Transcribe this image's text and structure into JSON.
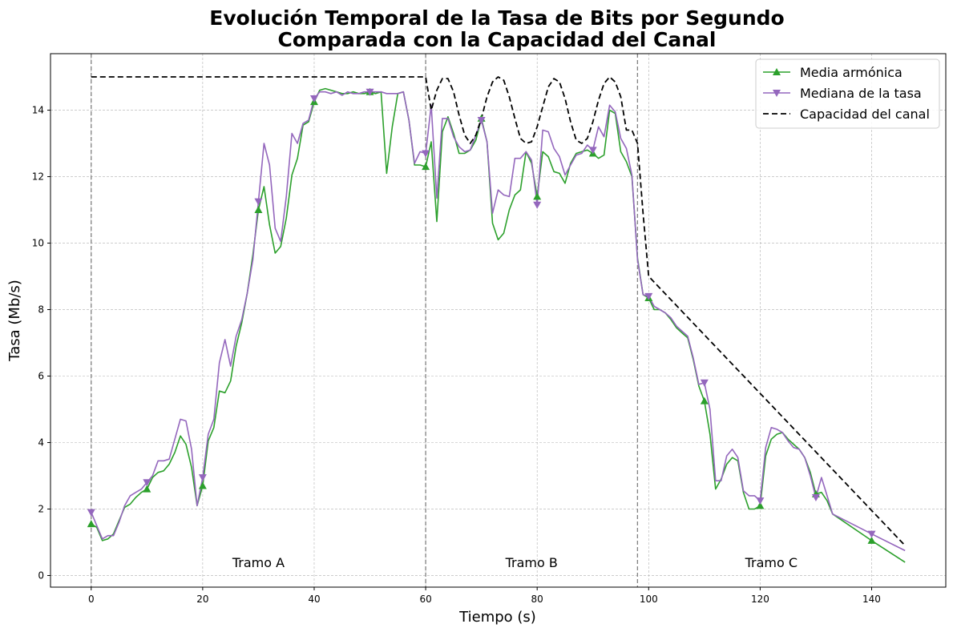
{
  "chart_data": {
    "type": "line",
    "title": [
      "Evolución Temporal de la Tasa de Bits por Segundo",
      "Comparada con la Capacidad del Canal"
    ],
    "xlabel": "Tiempo (s)",
    "ylabel": "Tasa (Mb/s)",
    "xlim": [
      -7.3,
      153.3
    ],
    "ylim": [
      -0.35,
      15.7
    ],
    "xticks": [
      0,
      20,
      40,
      60,
      80,
      100,
      120,
      140
    ],
    "yticks": [
      0,
      2,
      4,
      6,
      8,
      10,
      12,
      14
    ],
    "grid": true,
    "legend_position": "top-right",
    "vlines": [
      0,
      60,
      98
    ],
    "annotations": [
      {
        "text": "Tramo A",
        "x": 30,
        "y": 0.2
      },
      {
        "text": "Tramo B",
        "x": 79,
        "y": 0.2
      },
      {
        "text": "Tramo C",
        "x": 122,
        "y": 0.2
      }
    ],
    "series": [
      {
        "name": "Media armónica",
        "color": "#2ca02c",
        "marker": "triangle-up",
        "marker_x": [
          0,
          10,
          20,
          30,
          40,
          50,
          60,
          70,
          80,
          90,
          100,
          110,
          120,
          130,
          140
        ],
        "x": [
          0,
          1,
          2,
          3,
          4,
          5,
          6,
          7,
          8,
          9,
          10,
          11,
          12,
          13,
          14,
          15,
          16,
          17,
          18,
          19,
          20,
          21,
          22,
          23,
          24,
          25,
          26,
          27,
          28,
          29,
          30,
          31,
          32,
          33,
          34,
          35,
          36,
          37,
          38,
          39,
          40,
          41,
          42,
          43,
          44,
          45,
          46,
          47,
          48,
          49,
          50,
          51,
          52,
          53,
          54,
          55,
          56,
          57,
          58,
          59,
          60,
          61,
          62,
          63,
          64,
          65,
          66,
          67,
          68,
          69,
          70,
          71,
          72,
          73,
          74,
          75,
          76,
          77,
          78,
          79,
          80,
          81,
          82,
          83,
          84,
          85,
          86,
          87,
          88,
          89,
          90,
          91,
          92,
          93,
          94,
          95,
          96,
          97,
          98,
          99,
          100,
          101,
          102,
          103,
          104,
          105,
          106,
          107,
          108,
          109,
          110,
          111,
          112,
          113,
          114,
          115,
          116,
          117,
          118,
          119,
          120,
          121,
          122,
          123,
          124,
          125,
          126,
          127,
          128,
          129,
          130,
          131,
          132,
          133,
          140,
          146
        ],
        "values": [
          1.55,
          1.45,
          1.05,
          1.1,
          1.25,
          1.65,
          2.05,
          2.15,
          2.35,
          2.5,
          2.6,
          2.95,
          3.1,
          3.15,
          3.35,
          3.7,
          4.2,
          3.95,
          3.25,
          2.1,
          2.7,
          4.05,
          4.45,
          5.55,
          5.5,
          5.85,
          6.9,
          7.6,
          8.5,
          9.65,
          11.0,
          11.7,
          10.55,
          9.7,
          9.9,
          10.75,
          12.05,
          12.55,
          13.55,
          13.65,
          14.25,
          14.6,
          14.65,
          14.6,
          14.55,
          14.5,
          14.5,
          14.55,
          14.5,
          14.5,
          14.55,
          14.5,
          14.55,
          12.1,
          13.5,
          14.5,
          14.55,
          13.7,
          12.35,
          12.35,
          12.3,
          13.05,
          10.65,
          13.35,
          13.8,
          13.3,
          12.7,
          12.7,
          12.8,
          13.1,
          13.75,
          13.05,
          10.6,
          10.1,
          10.3,
          11.0,
          11.45,
          11.6,
          12.75,
          12.4,
          11.4,
          12.75,
          12.6,
          12.15,
          12.1,
          11.8,
          12.4,
          12.7,
          12.75,
          12.8,
          12.7,
          12.55,
          12.65,
          14.0,
          13.9,
          12.75,
          12.45,
          12.0,
          9.55,
          8.45,
          8.35,
          8.0,
          8.0,
          7.9,
          7.7,
          7.45,
          7.3,
          7.15,
          6.5,
          5.7,
          5.25,
          4.25,
          2.6,
          2.9,
          3.35,
          3.55,
          3.45,
          2.5,
          2.0,
          2.0,
          2.1,
          3.6,
          4.1,
          4.25,
          4.3,
          4.1,
          3.95,
          3.8,
          3.55,
          3.1,
          2.45,
          2.5,
          2.25,
          1.85,
          1.05,
          0.4
        ]
      },
      {
        "name": "Mediana de la tasa",
        "color": "#9467bd",
        "marker": "triangle-down",
        "marker_x": [
          0,
          10,
          20,
          30,
          40,
          50,
          60,
          70,
          80,
          90,
          100,
          110,
          120,
          130,
          140
        ],
        "x": [
          0,
          1,
          2,
          3,
          4,
          5,
          6,
          7,
          8,
          9,
          10,
          11,
          12,
          13,
          14,
          15,
          16,
          17,
          18,
          19,
          20,
          21,
          22,
          23,
          24,
          25,
          26,
          27,
          28,
          29,
          30,
          31,
          32,
          33,
          34,
          35,
          36,
          37,
          38,
          39,
          40,
          41,
          42,
          43,
          44,
          45,
          46,
          47,
          48,
          49,
          50,
          51,
          52,
          53,
          54,
          55,
          56,
          57,
          58,
          59,
          60,
          61,
          62,
          63,
          64,
          65,
          66,
          67,
          68,
          69,
          70,
          71,
          72,
          73,
          74,
          75,
          76,
          77,
          78,
          79,
          80,
          81,
          82,
          83,
          84,
          85,
          86,
          87,
          88,
          89,
          90,
          91,
          92,
          93,
          94,
          95,
          96,
          97,
          98,
          99,
          100,
          101,
          102,
          103,
          104,
          105,
          106,
          107,
          108,
          109,
          110,
          111,
          112,
          113,
          114,
          115,
          116,
          117,
          118,
          119,
          120,
          121,
          122,
          123,
          124,
          125,
          126,
          127,
          128,
          129,
          130,
          131,
          132,
          133,
          140,
          146
        ],
        "values": [
          1.9,
          1.5,
          1.1,
          1.2,
          1.2,
          1.6,
          2.1,
          2.4,
          2.5,
          2.6,
          2.8,
          3.0,
          3.45,
          3.45,
          3.5,
          4.1,
          4.7,
          4.65,
          3.8,
          2.1,
          2.95,
          4.25,
          4.7,
          6.4,
          7.1,
          6.3,
          7.2,
          7.7,
          8.5,
          9.5,
          11.25,
          13.0,
          12.35,
          10.45,
          10.05,
          11.4,
          13.3,
          13.0,
          13.6,
          13.7,
          14.35,
          14.55,
          14.55,
          14.5,
          14.55,
          14.45,
          14.55,
          14.5,
          14.5,
          14.55,
          14.55,
          14.55,
          14.55,
          14.5,
          14.5,
          14.5,
          14.55,
          13.7,
          12.4,
          12.75,
          12.7,
          14.15,
          11.35,
          13.75,
          13.75,
          13.2,
          12.9,
          12.75,
          12.8,
          13.25,
          13.7,
          13.05,
          10.9,
          11.6,
          11.45,
          11.4,
          12.55,
          12.55,
          12.75,
          12.5,
          11.15,
          13.4,
          13.35,
          12.85,
          12.6,
          12.05,
          12.35,
          12.65,
          12.7,
          12.95,
          12.8,
          13.5,
          13.2,
          14.15,
          13.95,
          13.15,
          12.85,
          12.05,
          9.5,
          8.45,
          8.4,
          8.1,
          8.0,
          7.9,
          7.75,
          7.5,
          7.35,
          7.2,
          6.55,
          5.75,
          5.8,
          5.0,
          2.85,
          2.85,
          3.6,
          3.8,
          3.55,
          2.55,
          2.4,
          2.4,
          2.25,
          3.85,
          4.45,
          4.4,
          4.3,
          4.05,
          3.85,
          3.8,
          3.55,
          3.0,
          2.35,
          2.95,
          2.4,
          1.85,
          1.25,
          0.75
        ]
      },
      {
        "name": "Capacidad del canal",
        "color": "#000000",
        "dashed": true,
        "x": [
          0,
          60,
          61,
          62,
          63,
          64,
          65,
          66,
          67,
          68,
          69,
          70,
          71,
          72,
          73,
          74,
          75,
          76,
          77,
          78,
          79,
          80,
          81,
          82,
          83,
          84,
          85,
          86,
          87,
          88,
          89,
          90,
          91,
          92,
          93,
          94,
          95,
          96,
          97,
          98,
          99,
          100,
          146
        ],
        "values": [
          15.0,
          15.0,
          14.0,
          14.6,
          14.95,
          14.95,
          14.55,
          13.85,
          13.25,
          13.0,
          13.25,
          13.75,
          14.4,
          14.85,
          15.0,
          14.9,
          14.4,
          13.75,
          13.15,
          13.0,
          13.05,
          13.5,
          14.1,
          14.7,
          14.95,
          14.85,
          14.35,
          13.65,
          13.1,
          13.0,
          13.15,
          13.65,
          14.3,
          14.8,
          15.0,
          14.85,
          14.4,
          13.4,
          13.4,
          13.0,
          10.9,
          9.0,
          0.9
        ]
      }
    ]
  }
}
